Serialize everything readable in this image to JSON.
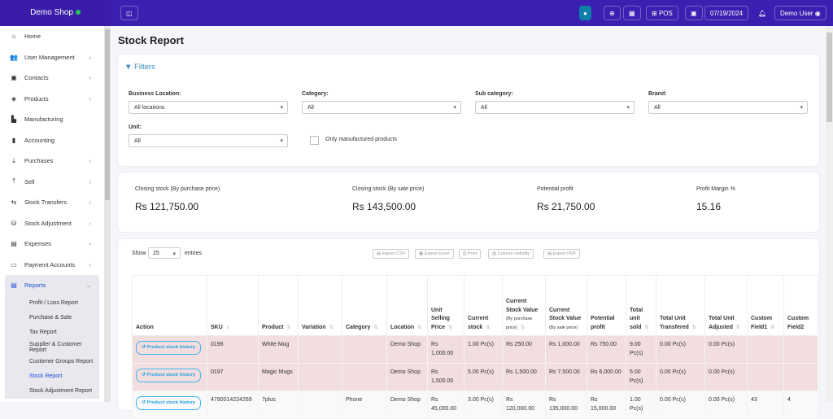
{
  "topbar": {
    "brand": "Demo Shop",
    "pos": "POS",
    "date": "07/19/2024",
    "user": "Demo User"
  },
  "sidebar": {
    "items": [
      {
        "label": "Home",
        "icon": "⌂"
      },
      {
        "label": "User Management",
        "icon": "👥",
        "chev": true
      },
      {
        "label": "Contacts",
        "icon": "▣",
        "chev": true
      },
      {
        "label": "Products",
        "icon": "◈",
        "chev": true
      },
      {
        "label": "Manufacturing",
        "icon": "▙"
      },
      {
        "label": "Accounting",
        "icon": "▮"
      },
      {
        "label": "Purchases",
        "icon": "⤓",
        "chev": true
      },
      {
        "label": "Sell",
        "icon": "⤒",
        "chev": true
      },
      {
        "label": "Stock Transfers",
        "icon": "⇆",
        "chev": true
      },
      {
        "label": "Stock Adjustment",
        "icon": "⛁",
        "chev": true
      },
      {
        "label": "Expenses",
        "icon": "▤",
        "chev": true
      },
      {
        "label": "Payment Accounts",
        "icon": "▭",
        "chev": true
      }
    ],
    "reports": {
      "label": "Reports",
      "sub": [
        "Profit / Loss Report",
        "Purchase & Sale",
        "Tax Report",
        "Supplier & Customer Report",
        "Customer Groups Report",
        "Stock Report",
        "Stock Adjustment Report"
      ],
      "active": "Stock Report"
    }
  },
  "page": {
    "title": "Stock Report"
  },
  "filters": {
    "title": "Filters",
    "business_location": {
      "label": "Business Location:",
      "value": "All locations"
    },
    "category": {
      "label": "Category:",
      "value": "All"
    },
    "sub_category": {
      "label": "Sub category:",
      "value": "All"
    },
    "brand": {
      "label": "Brand:",
      "value": "All"
    },
    "unit": {
      "label": "Unit:",
      "value": "All"
    },
    "only_manufactured": "Only manufactured products"
  },
  "summary": [
    {
      "label": "Closing stock (By purchase price)",
      "value": "Rs 121,750.00"
    },
    {
      "label": "Closing stock (By sale price)",
      "value": "Rs 143,500.00"
    },
    {
      "label": "Potential profit",
      "value": "Rs 21,750.00"
    },
    {
      "label": "Profit Margin %",
      "value": "15.16"
    }
  ],
  "table": {
    "show": "Show",
    "entries": "entries",
    "page_size": "25",
    "buttons": [
      "Export CSV",
      "Export Excel",
      "Print",
      "Column visibility",
      "Export PDF"
    ],
    "headers": [
      "Action",
      "SKU",
      "Product",
      "Variation",
      "Category",
      "Location",
      "Unit Selling Price",
      "Current stock",
      "Current Stock Value",
      "Current Stock Value",
      "Potential profit",
      "Total unit sold",
      "Total Unit Transfered",
      "Total Unit Adjusted",
      "Custom Field1",
      "Custom Field2"
    ],
    "header_subs": {
      "8": "(By purchase price)",
      "9": "(By sale price)"
    },
    "action_label": "Product stock history",
    "rows": [
      {
        "status": "neg",
        "cells": [
          "0196",
          "White Mug",
          "",
          "",
          "Demo Shop",
          "Rs 1,000.00",
          "1.00 Pc(s)",
          "Rs 250.00",
          "Rs 1,000.00",
          "Rs 750.00",
          "9.00 Pc(s)",
          "0.00 Pc(s)",
          "0.00 Pc(s)",
          "",
          ""
        ]
      },
      {
        "status": "neg",
        "cells": [
          "0197",
          "Magic Mugs",
          "",
          "",
          "Demo Shop",
          "Rs 1,500.00",
          "5.00 Pc(s)",
          "Rs 1,500.00",
          "Rs 7,500.00",
          "Rs 6,000.00",
          "5.00 Pc(s)",
          "0.00 Pc(s)",
          "0.00 Pc(s)",
          "",
          ""
        ]
      },
      {
        "status": "ok",
        "cells": [
          "4790014224269",
          "7plus",
          "",
          "Phone",
          "Demo Shop",
          "Rs 45,000.00",
          "3.00 Pc(s)",
          "Rs 120,000.00",
          "Rs 135,000.00",
          "Rs 15,000.00",
          "1.00 Pc(s)",
          "0.00 Pc(s)",
          "0.00 Pc(s)",
          "43",
          "4"
        ]
      }
    ]
  },
  "colors": {
    "topbar": "#3b1fb0",
    "negative_row": "#f2dede",
    "link": "#1da1e8"
  }
}
